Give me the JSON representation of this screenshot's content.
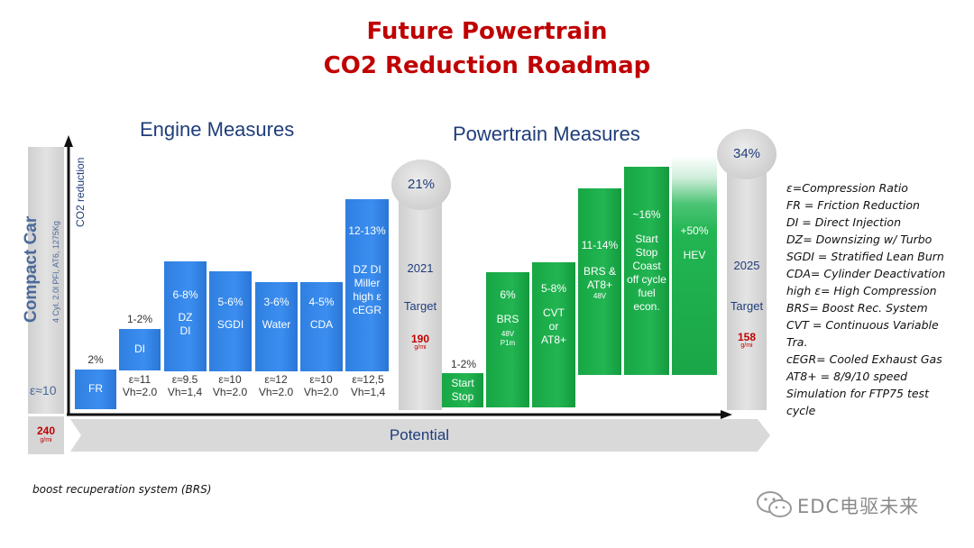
{
  "title": {
    "line1": "Future Powertrain",
    "line2": "CO2 Reduction Roadmap"
  },
  "sections": {
    "engine": "Engine Measures",
    "powertrain": "Powertrain Measures"
  },
  "y_axis_label": "CO2 reduction",
  "vehicle": {
    "name": "Compact Car",
    "spec": "4 Cyl. 2.0l PFI, AT6, 1275Kg",
    "ratio": "ε≈10"
  },
  "baseline": {
    "value": "240",
    "unit": "g/mi"
  },
  "x_axis_label": "Potential",
  "engine_bars": [
    {
      "label": "FR",
      "pct": "2%",
      "under1": "",
      "under2": ""
    },
    {
      "label": "DI",
      "pct": "1-2%",
      "under1": "ε≈11",
      "under2": "Vh=2.0"
    },
    {
      "label": "DZ DI",
      "pct": "6-8%",
      "under1": "ε≈9.5",
      "under2": "Vh=1,4"
    },
    {
      "label": "SGDI",
      "pct": "5-6%",
      "under1": "ε≈10",
      "under2": "Vh=2.0"
    },
    {
      "label": "Water",
      "pct": "3-6%",
      "under1": "ε≈12",
      "under2": "Vh=2.0"
    },
    {
      "label": "CDA",
      "pct": "4-5%",
      "under1": "ε≈10",
      "under2": "Vh=2.0"
    },
    {
      "label": "DZ DI Miller high ε cEGR",
      "pct": "12-13%",
      "under1": "ε≈12,5",
      "under2": "Vh=1,4"
    }
  ],
  "target_2021": {
    "pct": "21%",
    "year": "2021",
    "label": "Target",
    "value": "190",
    "unit": "g/mi"
  },
  "powertrain_bars": [
    {
      "label": "Start Stop",
      "pct": "1-2%",
      "sub": ""
    },
    {
      "label": "BRS",
      "pct": "6%",
      "sub": "48V P1m"
    },
    {
      "label": "CVT or AT8+",
      "pct": "5-8%",
      "sub": ""
    },
    {
      "label": "BRS & AT8+",
      "pct": "11-14%",
      "sub": "48V"
    },
    {
      "label": "Start Stop Coast off cycle fuel econ.",
      "pct": "~16%",
      "sub": ""
    },
    {
      "label": "HEV",
      "pct": "+50%",
      "sub": ""
    }
  ],
  "target_2025": {
    "pct": "34%",
    "year": "2025",
    "label": "Target",
    "value": "158",
    "unit": "g/mi"
  },
  "legend": [
    "ε=Compression Ratio",
    "FR = Friction Reduction",
    "DI = Direct Injection",
    "DZ= Downsizing w/ Turbo",
    "SGDI = Stratified Lean Burn",
    "CDA= Cylinder Deactivation",
    "high ε= High Compression",
    "BRS= Boost Rec. System",
    "CVT = Continuous Variable",
    "Tra.",
    "cEGR= Cooled Exhaust Gas",
    "AT8+ = 8/9/10 speed",
    "Simulation for FTP75 test",
    "cycle"
  ],
  "footnote": "boost recuperation system (BRS)",
  "watermark": "EDC电驱未来",
  "colors": {
    "title": "#c00000",
    "engine_bar": "#3b8ef0",
    "powertrain_bar": "#22b552",
    "heading": "#1f3d7a"
  }
}
